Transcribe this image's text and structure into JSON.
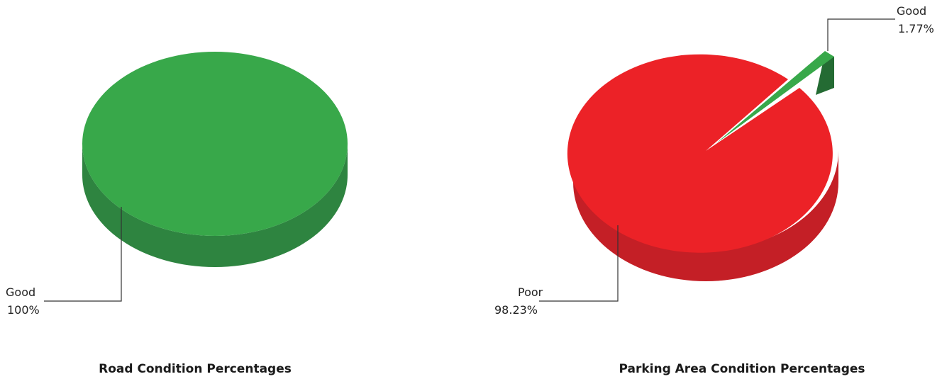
{
  "chart_data": [
    {
      "type": "pie",
      "title": "Road Condition Percentages",
      "slices": [
        {
          "label": "Good",
          "value": 100,
          "display": "100%",
          "color": "#38a84a",
          "side_color": "#2e8440"
        }
      ]
    },
    {
      "type": "pie",
      "title": "Parking Area Condition Percentages",
      "slices": [
        {
          "label": "Poor",
          "value": 98.23,
          "display": "98.23%",
          "color": "#ec2227",
          "side_color": "#c41f26"
        },
        {
          "label": "Good",
          "value": 1.77,
          "display": "1.77%",
          "color": "#38a84a",
          "side_color": "#246b33",
          "exploded": true
        }
      ]
    }
  ]
}
